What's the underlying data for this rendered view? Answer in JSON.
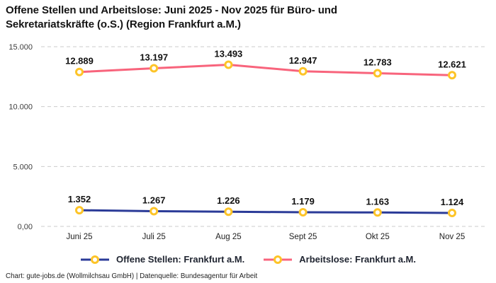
{
  "title": "Offene Stellen und Arbeitslose: Juni 2025 - Nov 2025 für Büro- und Sekretariatskräfte (o.S.) (Region Frankfurt a.M.)",
  "footer": "Chart: gute-jobs.de (Wollmilchsau GmbH) | Datenquelle: Bundesagentur für Arbeit",
  "chart_data": {
    "type": "line",
    "title": "Offene Stellen und Arbeitslose: Juni 2025 - Nov 2025 für Büro- und Sekretariatskräfte (o.S.) (Region Frankfurt a.M.)",
    "categories": [
      "Juni 25",
      "Juli 25",
      "Aug 25",
      "Sept 25",
      "Okt 25",
      "Nov 25"
    ],
    "series": [
      {
        "name": "Offene Stellen: Frankfurt a.M.",
        "color": "#2B3B98",
        "values": [
          1352,
          1267,
          1226,
          1179,
          1163,
          1124
        ],
        "labels": [
          "1.352",
          "1.267",
          "1.226",
          "1.179",
          "1.163",
          "1.124"
        ]
      },
      {
        "name": "Arbeitslose: Frankfurt a.M.",
        "color": "#F8647C",
        "values": [
          12889,
          13197,
          13493,
          12947,
          12783,
          12621
        ],
        "labels": [
          "12.889",
          "13.197",
          "13.493",
          "12.947",
          "12.783",
          "12.621"
        ]
      }
    ],
    "yticks": [
      {
        "value": 0,
        "label": "0,00"
      },
      {
        "value": 5000,
        "label": "5.000"
      },
      {
        "value": 10000,
        "label": "10.000"
      },
      {
        "value": 15000,
        "label": "15.000"
      }
    ],
    "ylim": [
      0,
      15000
    ],
    "xlabel": "",
    "ylabel": "",
    "grid": true,
    "grid_color": "#cbcbcb",
    "legend_position": "bottom",
    "marker": {
      "fill": "#ffffff",
      "stroke": "#FDC428"
    }
  }
}
